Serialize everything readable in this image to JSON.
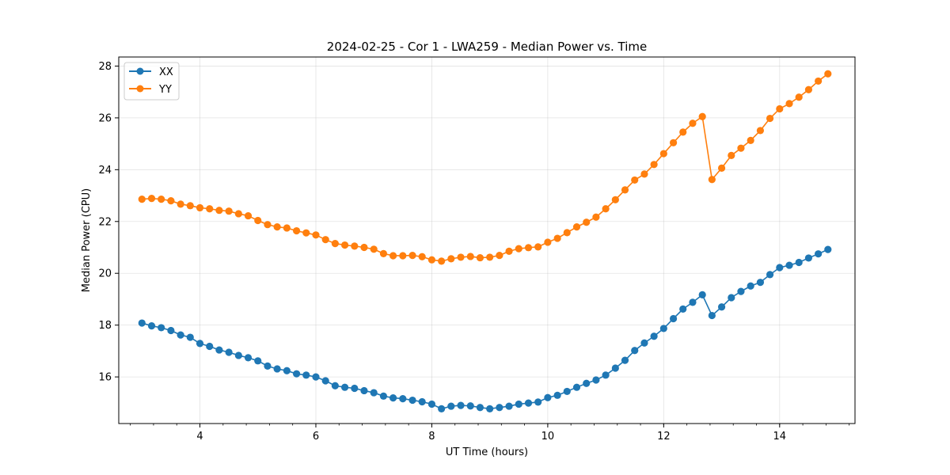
{
  "chart_data": {
    "type": "line",
    "title": "2024-02-25 - Cor 1 - LWA259 - Median Power vs. Time",
    "xlabel": "UT Time (hours)",
    "ylabel": "Median Power (CPU)",
    "xlim": [
      2.6,
      15.3
    ],
    "ylim": [
      14.2,
      28.35
    ],
    "xticks": [
      4,
      6,
      8,
      10,
      12,
      14
    ],
    "xtick_labels": [
      "4",
      "6",
      "8",
      "10",
      "12",
      "14"
    ],
    "x_minor_step": 0.4,
    "yticks": [
      16,
      18,
      20,
      22,
      24,
      26,
      28
    ],
    "ytick_labels": [
      "16",
      "18",
      "20",
      "22",
      "24",
      "26",
      "28"
    ],
    "grid": true,
    "legend_position": "top-left",
    "x": [
      3.0,
      3.167,
      3.333,
      3.5,
      3.667,
      3.833,
      4.0,
      4.167,
      4.333,
      4.5,
      4.667,
      4.833,
      5.0,
      5.167,
      5.333,
      5.5,
      5.667,
      5.833,
      6.0,
      6.167,
      6.333,
      6.5,
      6.667,
      6.833,
      7.0,
      7.167,
      7.333,
      7.5,
      7.667,
      7.833,
      8.0,
      8.167,
      8.333,
      8.5,
      8.667,
      8.833,
      9.0,
      9.167,
      9.333,
      9.5,
      9.667,
      9.833,
      10.0,
      10.167,
      10.333,
      10.5,
      10.667,
      10.833,
      11.0,
      11.167,
      11.333,
      11.5,
      11.667,
      11.833,
      12.0,
      12.167,
      12.333,
      12.5,
      12.667,
      12.833,
      13.0,
      13.167,
      13.333,
      13.5,
      13.667,
      13.833,
      14.0,
      14.167,
      14.333,
      14.5,
      14.667,
      14.833
    ],
    "series": [
      {
        "name": "XX",
        "color": "#1f77b4",
        "values": [
          18.08,
          17.97,
          17.9,
          17.79,
          17.62,
          17.53,
          17.29,
          17.18,
          17.04,
          16.95,
          16.83,
          16.74,
          16.62,
          16.42,
          16.31,
          16.24,
          16.12,
          16.07,
          16.0,
          15.85,
          15.66,
          15.6,
          15.56,
          15.47,
          15.39,
          15.26,
          15.19,
          15.16,
          15.1,
          15.04,
          14.95,
          14.77,
          14.87,
          14.9,
          14.88,
          14.82,
          14.77,
          14.82,
          14.87,
          14.95,
          14.99,
          15.03,
          15.2,
          15.29,
          15.44,
          15.6,
          15.75,
          15.88,
          16.07,
          16.34,
          16.64,
          17.02,
          17.31,
          17.57,
          17.87,
          18.25,
          18.62,
          18.88,
          19.17,
          18.37,
          18.7,
          19.06,
          19.3,
          19.51,
          19.65,
          19.95,
          20.22,
          20.31,
          20.42,
          20.59,
          20.75,
          20.92
        ]
      },
      {
        "name": "YY",
        "color": "#ff7f0e",
        "values": [
          22.86,
          22.89,
          22.86,
          22.8,
          22.67,
          22.61,
          22.53,
          22.49,
          22.43,
          22.4,
          22.3,
          22.22,
          22.04,
          21.88,
          21.79,
          21.75,
          21.64,
          21.56,
          21.48,
          21.3,
          21.15,
          21.09,
          21.05,
          21.0,
          20.93,
          20.76,
          20.68,
          20.68,
          20.69,
          20.64,
          20.52,
          20.47,
          20.56,
          20.62,
          20.65,
          20.6,
          20.62,
          20.69,
          20.85,
          20.95,
          20.99,
          21.02,
          21.2,
          21.35,
          21.57,
          21.79,
          21.97,
          22.17,
          22.49,
          22.84,
          23.22,
          23.6,
          23.83,
          24.2,
          24.62,
          25.04,
          25.45,
          25.79,
          26.05,
          23.62,
          24.06,
          24.55,
          24.83,
          25.13,
          25.51,
          25.98,
          26.35,
          26.55,
          26.8,
          27.09,
          27.42,
          27.7
        ]
      }
    ]
  }
}
